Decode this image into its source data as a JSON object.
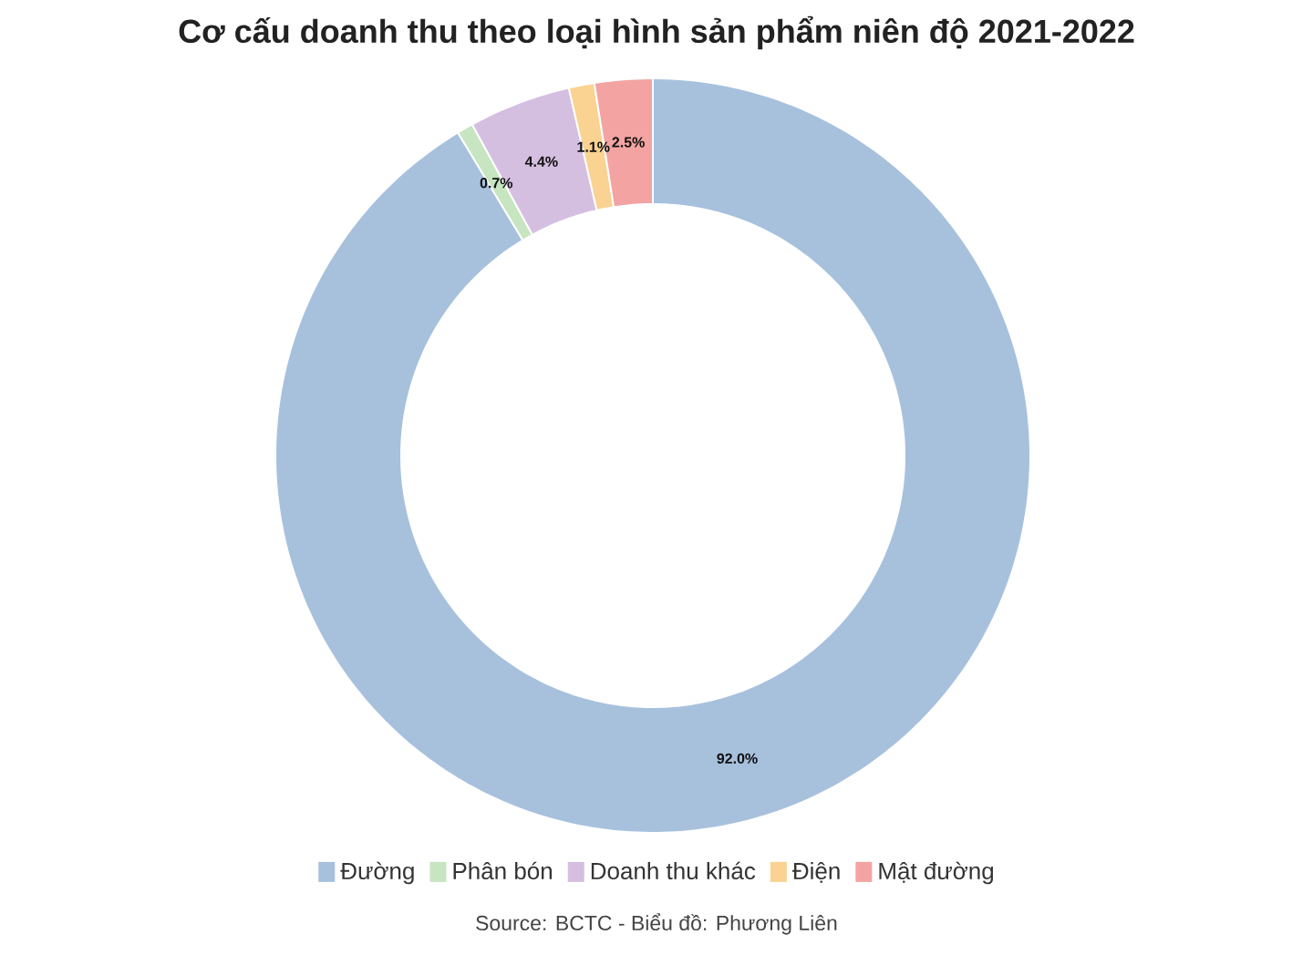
{
  "chart_data": {
    "type": "donut",
    "title": "Cơ cấu doanh thu theo loại hình sản phẩm niên độ 2021-2022",
    "categories": [
      "Đường",
      "Phân bón",
      "Doanh thu khác",
      "Điện",
      "Mật đường"
    ],
    "values": [
      92.0,
      0.7,
      4.4,
      1.1,
      2.5
    ],
    "colors": [
      "#a7c1dd",
      "#c6e5c0",
      "#d5bfe0",
      "#fad291",
      "#f3a4a2"
    ],
    "value_labels": [
      "92.0%",
      "0.7%",
      "4.4%",
      "1.1%",
      "2.5%"
    ],
    "legend": "bottom",
    "annotations": [
      "Source: BCTC - Biểu đồ: Phương Liên"
    ]
  }
}
